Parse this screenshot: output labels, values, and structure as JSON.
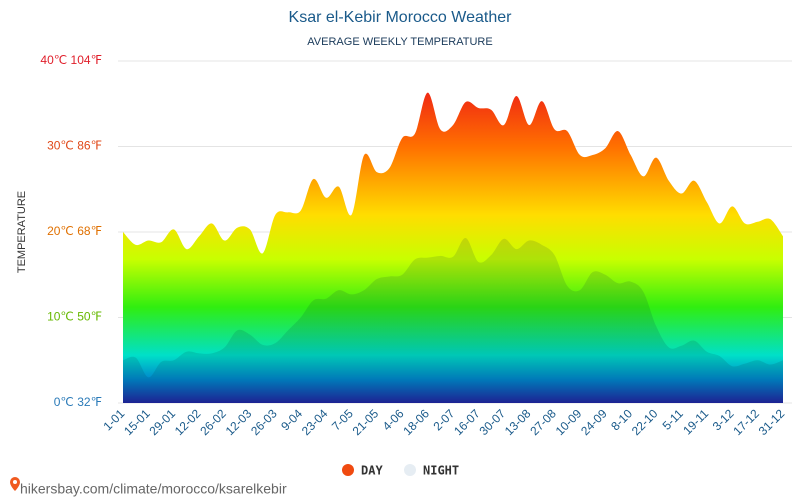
{
  "chart_data": {
    "type": "area",
    "title": "Ksar el-Kebir Morocco Weather",
    "subtitle": "AVERAGE WEEKLY TEMPERATURE",
    "y_label": "TEMPERATURE",
    "footer": "hikersbay.com/climate/morocco/ksarelkebir",
    "categories": [
      "1-01",
      null,
      "15-01",
      null,
      "29-01",
      null,
      "12-02",
      null,
      "26-02",
      null,
      "12-03",
      null,
      "26-03",
      null,
      "9-04",
      null,
      "23-04",
      null,
      "7-05",
      null,
      "21-05",
      null,
      "4-06",
      null,
      "18-06",
      null,
      "2-07",
      null,
      "16-07",
      null,
      "30-07",
      null,
      "13-08",
      null,
      "27-08",
      null,
      "10-09",
      null,
      "24-09",
      null,
      "8-10",
      null,
      "22-10",
      null,
      "5-11",
      null,
      "19-11",
      null,
      "3-12",
      null,
      "17-12",
      null,
      "31-12"
    ],
    "series": [
      {
        "name": "DAY",
        "color": "#f04a10",
        "values": [
          20,
          18.5,
          19,
          18.8,
          20.3,
          18,
          19.5,
          21,
          19,
          20.5,
          20.3,
          17.5,
          22,
          22.3,
          22.5,
          26.2,
          24,
          25.3,
          22,
          29,
          27,
          27.5,
          31,
          31.5,
          36.3,
          32,
          32.5,
          35.2,
          34.5,
          34.3,
          32.5,
          35.9,
          32.5,
          35.3,
          32,
          31.8,
          29,
          29,
          29.8,
          31.8,
          29,
          26.5,
          28.7,
          26,
          24.5,
          26,
          23.5,
          21,
          23,
          21,
          21.2,
          21.5,
          19.5
        ]
      },
      {
        "name": "NIGHT",
        "color": "#e6edf3",
        "values": [
          5,
          5.3,
          3,
          4.8,
          5,
          6,
          5.8,
          5.8,
          6.5,
          8.5,
          8,
          6.8,
          7,
          8.5,
          10,
          12,
          12.2,
          13.2,
          12.7,
          13.2,
          14.5,
          14.8,
          15,
          16.8,
          17,
          17.2,
          17.1,
          19.3,
          16.5,
          17.3,
          19.2,
          18,
          19,
          18.5,
          17.3,
          13.7,
          13.2,
          15.3,
          15,
          14,
          14.2,
          13,
          9,
          6.5,
          6.7,
          7.3,
          6,
          5.5,
          4.3,
          4.6,
          5,
          4.5,
          5
        ]
      }
    ],
    "ylim": [
      0,
      40
    ],
    "yticks": [
      {
        "value": 0,
        "label": "0℃ 32℉"
      },
      {
        "value": 10,
        "label": "10℃ 50℉"
      },
      {
        "value": 20,
        "label": "20℃ 68℉"
      },
      {
        "value": 30,
        "label": "30℃ 86℉"
      },
      {
        "value": 40,
        "label": "40℃ 104℉"
      }
    ],
    "ytick_colors": [
      "#2a7ab8",
      "#66b800",
      "#e07000",
      "#e04818",
      "#e01e2a"
    ],
    "grid": true
  }
}
